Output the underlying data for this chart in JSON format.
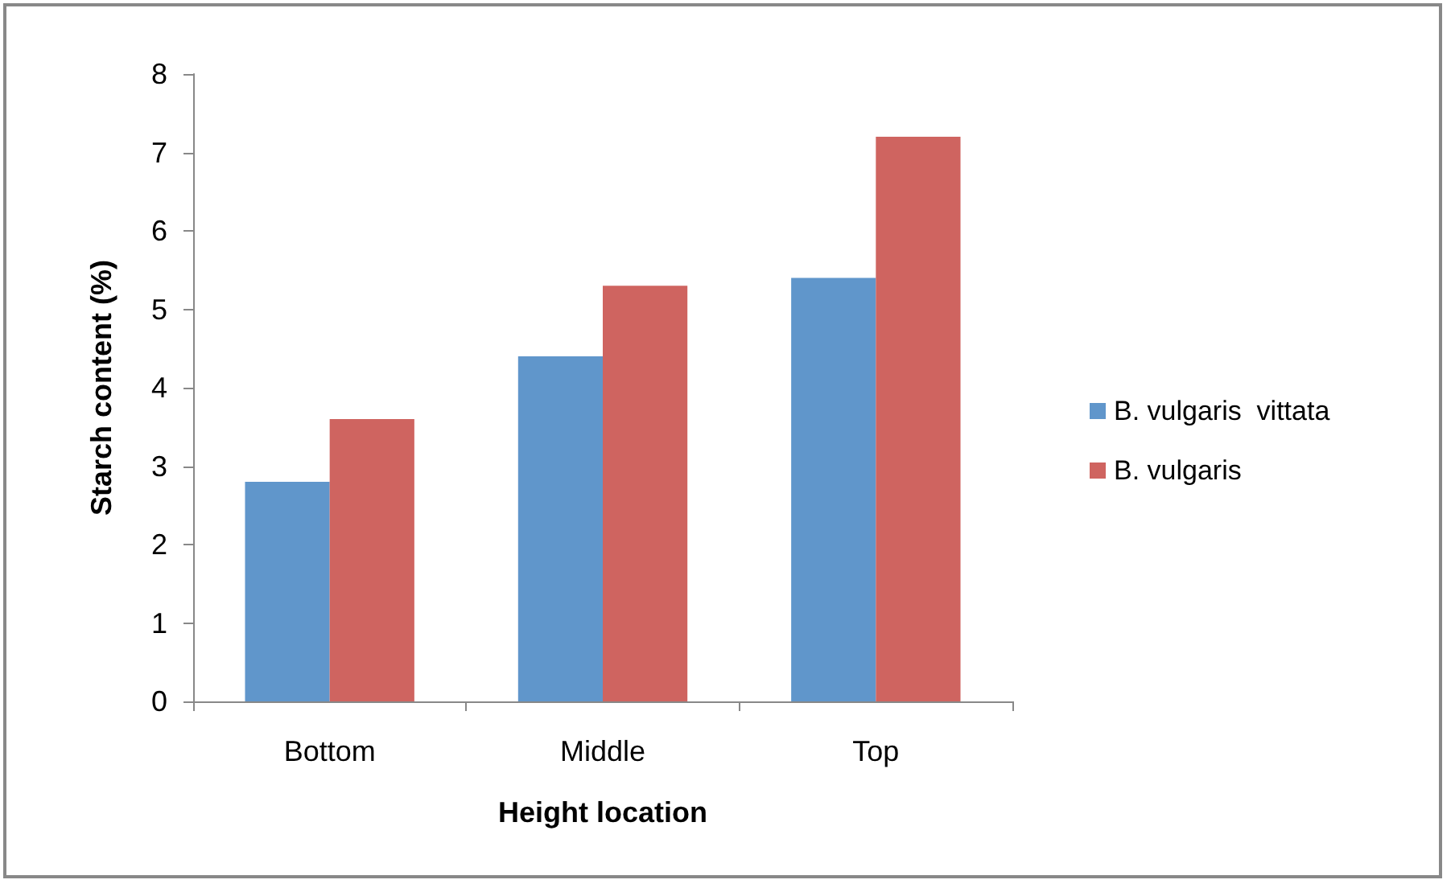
{
  "chart_data": {
    "type": "bar",
    "xlabel": "Height location",
    "ylabel": "Starch content (%)",
    "categories": [
      "Bottom",
      "Middle",
      "Top"
    ],
    "series": [
      {
        "name": "B. vulgaris  vittata",
        "color": "#6096cb",
        "values": [
          2.8,
          4.4,
          5.4
        ]
      },
      {
        "name": "B. vulgaris",
        "color": "#cf6460",
        "values": [
          3.6,
          5.3,
          7.2
        ]
      }
    ],
    "ylim": [
      0,
      8
    ],
    "yticks": [
      0,
      1,
      2,
      3,
      4,
      5,
      6,
      7,
      8
    ],
    "grid": false,
    "legend": "right"
  }
}
